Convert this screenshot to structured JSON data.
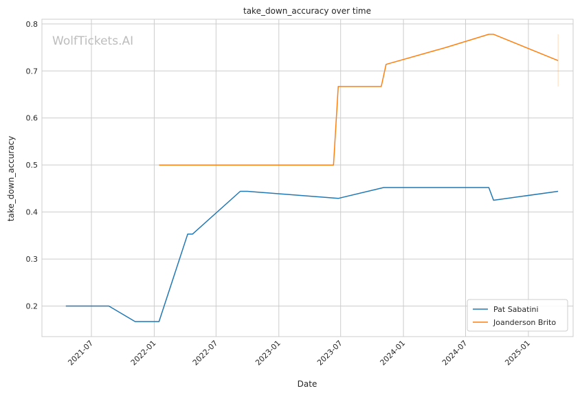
{
  "chart_data": {
    "type": "line",
    "title": "take_down_accuracy over time",
    "xlabel": "Date",
    "ylabel": "take_down_accuracy",
    "watermark": "WolfTickets.AI",
    "x_ticks": [
      "2021-07",
      "2022-01",
      "2022-07",
      "2023-01",
      "2023-07",
      "2024-01",
      "2024-07",
      "2025-01"
    ],
    "y_ticks": [
      "0.2",
      "0.3",
      "0.4",
      "0.5",
      "0.6",
      "0.7",
      "0.8"
    ],
    "xlim": [
      "2021-02-06",
      "2025-05-12"
    ],
    "ylim": [
      0.135,
      0.81
    ],
    "grid": true,
    "legend_position": "lower-right",
    "series": [
      {
        "name": "Pat Sabatini",
        "color": "#1f77b4",
        "points": [
          [
            "2021-04-17",
            0.2
          ],
          [
            "2021-08-21",
            0.2
          ],
          [
            "2021-11-06",
            0.167
          ],
          [
            "2022-01-15",
            0.167
          ],
          [
            "2022-04-09",
            0.353
          ],
          [
            "2022-04-23",
            0.353
          ],
          [
            "2022-09-10",
            0.444
          ],
          [
            "2022-10-01",
            0.444
          ],
          [
            "2023-06-24",
            0.429
          ],
          [
            "2023-11-04",
            0.452
          ],
          [
            "2024-09-07",
            0.452
          ],
          [
            "2024-09-21",
            0.425
          ],
          [
            "2025-03-29",
            0.444
          ]
        ]
      },
      {
        "name": "Joanderson Brito",
        "color": "#ff7f0e",
        "points": [
          [
            "2022-01-15",
            0.5
          ],
          [
            "2023-06-10",
            0.5
          ],
          [
            "2023-06-24",
            0.667
          ],
          [
            "2023-10-28",
            0.667
          ],
          [
            "2023-11-11",
            0.714
          ],
          [
            "2024-05-04",
            0.75
          ],
          [
            "2024-09-07",
            0.778
          ],
          [
            "2024-09-21",
            0.778
          ],
          [
            "2025-03-29",
            0.722
          ]
        ]
      }
    ],
    "annotations": [
      {
        "type": "vertical-range",
        "series": "Joanderson Brito",
        "x": "2025-03-29",
        "y_range": [
          0.667,
          0.778
        ]
      }
    ]
  }
}
